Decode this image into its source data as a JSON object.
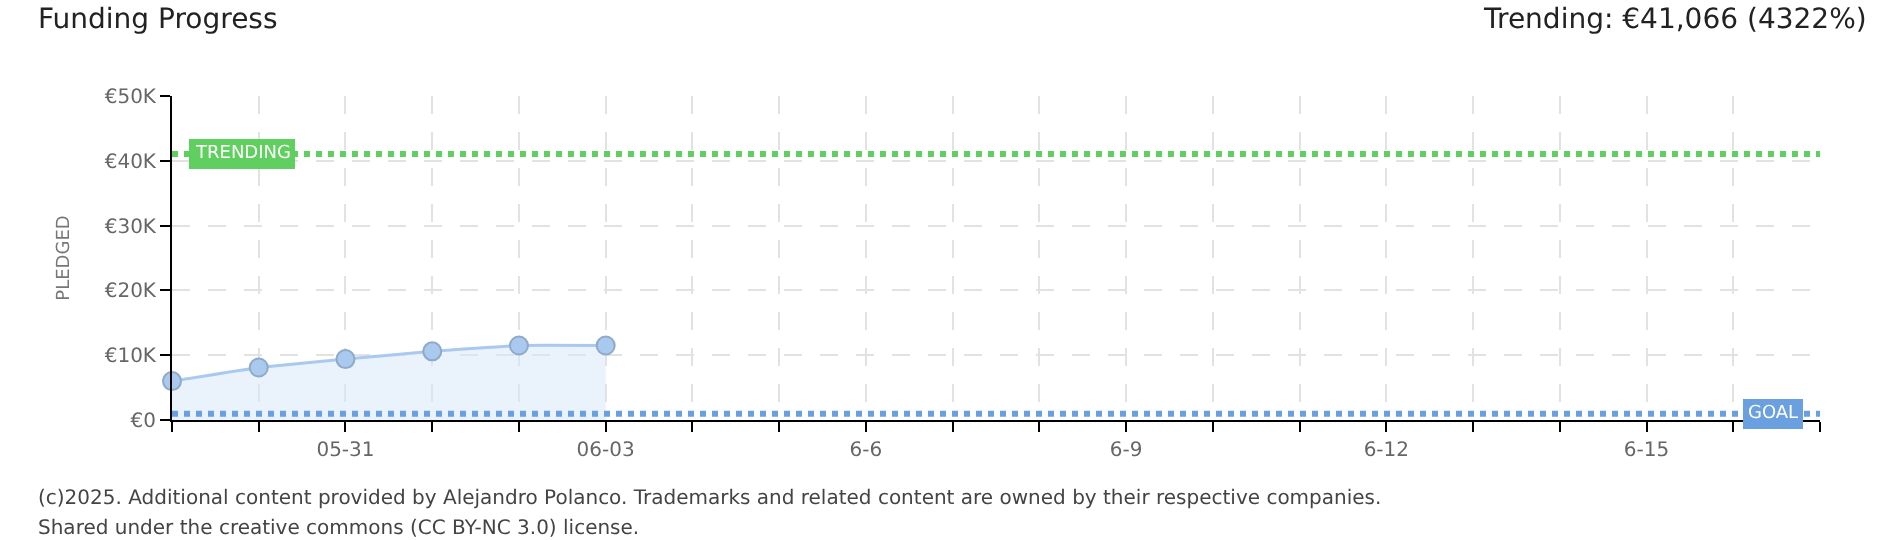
{
  "chart_data": {
    "type": "area",
    "title": "Funding Progress",
    "subtitle": "Trending: €41,066 (4322%)",
    "ylabel": "PLEDGED",
    "x": [
      "--05-29",
      "--05-30",
      "--05-31",
      "--06-01",
      "--06-02",
      "--06-03"
    ],
    "series": [
      {
        "color": "#a9c9ee",
        "values": [
          6000,
          8100,
          9400,
          10600,
          11500,
          11500
        ]
      }
    ],
    "marker": "circle",
    "xlim": [
      "--05-29",
      "--06-17"
    ],
    "xticks": [
      {
        "value": "--05-29",
        "label": null
      },
      {
        "value": "--05-30",
        "label": null
      },
      {
        "value": "--05-31",
        "label": "05-31"
      },
      {
        "value": "--06-01",
        "label": null
      },
      {
        "value": "--06-02",
        "label": null
      },
      {
        "value": "--06-03",
        "label": "06-03"
      },
      {
        "value": "--06-04",
        "label": null
      },
      {
        "value": "--06-05",
        "label": null
      },
      {
        "value": "--06-06",
        "label": "6-6"
      },
      {
        "value": "--06-07",
        "label": null
      },
      {
        "value": "--06-08",
        "label": null
      },
      {
        "value": "--06-09",
        "label": "6-9"
      },
      {
        "value": "--06-10",
        "label": null
      },
      {
        "value": "--06-11",
        "label": null
      },
      {
        "value": "--06-12",
        "label": "6-12"
      },
      {
        "value": "--06-13",
        "label": null
      },
      {
        "value": "--06-14",
        "label": null
      },
      {
        "value": "--06-15",
        "label": "6-15"
      },
      {
        "value": "--06-16",
        "label": null
      },
      {
        "value": "--06-17",
        "label": null
      }
    ],
    "ylim": [
      0,
      50000
    ],
    "yticks": [
      {
        "value": 0,
        "label": "€0"
      },
      {
        "value": 10000,
        "label": "€10K"
      },
      {
        "value": 20000,
        "label": "€20K"
      },
      {
        "value": 30000,
        "label": "€30K"
      },
      {
        "value": 40000,
        "label": "€40K"
      },
      {
        "value": 50000,
        "label": "€50K"
      }
    ],
    "ref_lines": [
      {
        "axis": "y",
        "value": 41066,
        "label": "TRENDING",
        "color": "#5fcf5f",
        "line_style": "dotted"
      },
      {
        "axis": "y",
        "value": 950,
        "label": "GOAL",
        "color": "#6a9fe0",
        "line_style": "dotted"
      }
    ],
    "annotations": [
      "(c)2025. Additional content provided by Alejandro Polanco. Trademarks and related content are owned by their respective companies.",
      "Shared under the creative commons (CC BY-NC 3.0) license."
    ],
    "grid": true
  }
}
